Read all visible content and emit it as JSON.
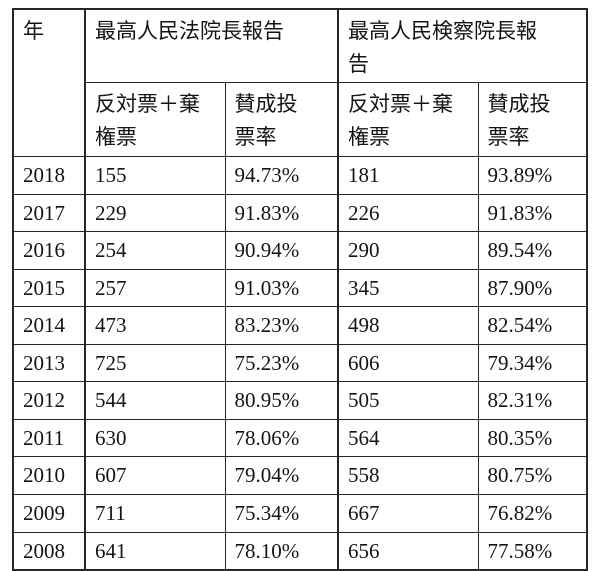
{
  "table": {
    "header": {
      "year_label": "年",
      "group_court": "最高人民法院長報告",
      "group_procuratorate": "最高人民検察院長報\n告",
      "sub_opposed_abstain_court": "反対票＋棄\n権票",
      "sub_approval_rate_court": "賛成投\n票率",
      "sub_opposed_abstain_proc": "反対票＋棄\n権票",
      "sub_approval_rate_proc": "賛成投\n票率"
    },
    "rows": [
      {
        "year": "2018",
        "court_opposed": "155",
        "court_rate": "94.73%",
        "proc_opposed": "181",
        "proc_rate": "93.89%"
      },
      {
        "year": "2017",
        "court_opposed": "229",
        "court_rate": "91.83%",
        "proc_opposed": "226",
        "proc_rate": "91.83%"
      },
      {
        "year": "2016",
        "court_opposed": "254",
        "court_rate": "90.94%",
        "proc_opposed": "290",
        "proc_rate": "89.54%"
      },
      {
        "year": "2015",
        "court_opposed": "257",
        "court_rate": "91.03%",
        "proc_opposed": "345",
        "proc_rate": "87.90%"
      },
      {
        "year": "2014",
        "court_opposed": "473",
        "court_rate": "83.23%",
        "proc_opposed": "498",
        "proc_rate": "82.54%"
      },
      {
        "year": "2013",
        "court_opposed": "725",
        "court_rate": "75.23%",
        "proc_opposed": "606",
        "proc_rate": "79.34%"
      },
      {
        "year": "2012",
        "court_opposed": "544",
        "court_rate": "80.95%",
        "proc_opposed": "505",
        "proc_rate": "82.31%"
      },
      {
        "year": "2011",
        "court_opposed": "630",
        "court_rate": "78.06%",
        "proc_opposed": "564",
        "proc_rate": "80.35%"
      },
      {
        "year": "2010",
        "court_opposed": "607",
        "court_rate": "79.04%",
        "proc_opposed": "558",
        "proc_rate": "80.75%"
      },
      {
        "year": "2009",
        "court_opposed": "711",
        "court_rate": "75.34%",
        "proc_opposed": "667",
        "proc_rate": "76.82%"
      },
      {
        "year": "2008",
        "court_opposed": "641",
        "court_rate": "78.10%",
        "proc_opposed": "656",
        "proc_rate": "77.58%"
      }
    ],
    "colors": {
      "border": "#262626",
      "text": "#141414",
      "background": "#ffffff"
    }
  }
}
